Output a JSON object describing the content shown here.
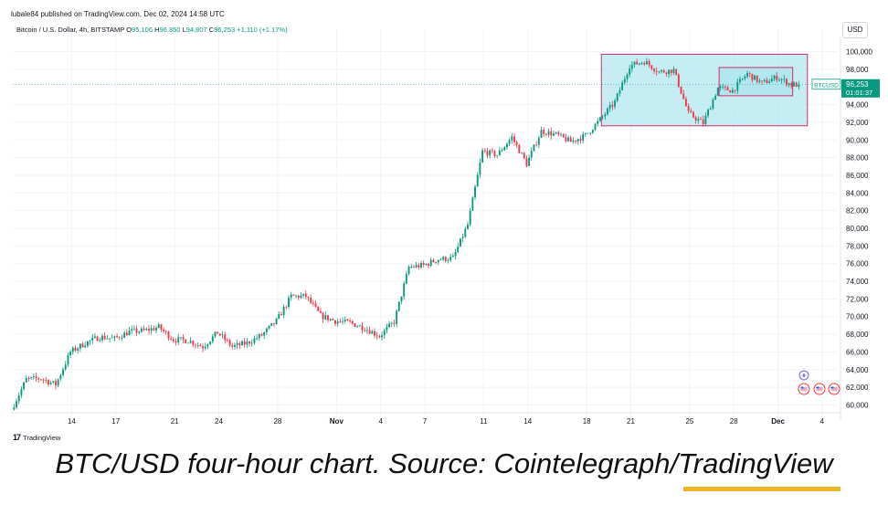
{
  "header": {
    "publisher": "lubale84 published on TradingView.com, Dec 02, 2024 14:58 UTC",
    "symbol_desc": "Bitcoin / U.S. Dollar, 4h, BITSTAMP",
    "open_label": "O",
    "open_value": "95,106",
    "high_label": "H",
    "high_value": "96,850",
    "low_label": "L",
    "low_value": "94,807",
    "close_label": "C",
    "close_value": "96,253",
    "change": "+1,110 (+1.17%)",
    "currency": "USD"
  },
  "price_tag": {
    "symbol": "BTCUSD",
    "price": "96,253",
    "countdown": "01:01:37"
  },
  "footer": {
    "logo_text": "TradingView",
    "caption": "BTC/USD four-hour chart. Source: Cointelegraph/TradingView"
  },
  "colors": {
    "up": "#089981",
    "down": "#f23645",
    "box_fill": "#a8e4ee",
    "box_border": "#d12c6a",
    "caption_underline": "#f0b429"
  },
  "chart_data": {
    "type": "candlestick",
    "timeframe": "4h",
    "y_ticks": [
      60000,
      62000,
      64000,
      66000,
      68000,
      70000,
      72000,
      74000,
      76000,
      78000,
      80000,
      82000,
      84000,
      86000,
      88000,
      90000,
      92000,
      94000,
      96000,
      98000,
      100000
    ],
    "y_tick_labels": [
      "60,000",
      "62,000",
      "64,000",
      "66,000",
      "68,000",
      "70,000",
      "72,000",
      "74,000",
      "76,000",
      "78,000",
      "80,000",
      "82,000",
      "84,000",
      "86,000",
      "88,000",
      "90,000",
      "92,000",
      "94,000",
      "96,000",
      "98,000",
      "100,000"
    ],
    "ylim": [
      58500,
      101500
    ],
    "x_axis": {
      "start": "2024-10-10",
      "end": "2024-12-05",
      "ticks": [
        {
          "date": "2024-10-14",
          "label": "14"
        },
        {
          "date": "2024-10-17",
          "label": "17"
        },
        {
          "date": "2024-10-21",
          "label": "21"
        },
        {
          "date": "2024-10-24",
          "label": "24"
        },
        {
          "date": "2024-10-28",
          "label": "28"
        },
        {
          "date": "2024-11-01",
          "label": "Nov"
        },
        {
          "date": "2024-11-04",
          "label": "4"
        },
        {
          "date": "2024-11-07",
          "label": "7"
        },
        {
          "date": "2024-11-11",
          "label": "11"
        },
        {
          "date": "2024-11-14",
          "label": "14"
        },
        {
          "date": "2024-11-18",
          "label": "18"
        },
        {
          "date": "2024-11-21",
          "label": "21"
        },
        {
          "date": "2024-11-25",
          "label": "25"
        },
        {
          "date": "2024-11-28",
          "label": "28"
        },
        {
          "date": "2024-12-01",
          "label": "Dec"
        },
        {
          "date": "2024-12-04",
          "label": "4"
        }
      ]
    },
    "price_path": [
      [
        "2024-10-10",
        59500
      ],
      [
        "2024-10-11",
        62900
      ],
      [
        "2024-10-12",
        63000
      ],
      [
        "2024-10-13",
        62300
      ],
      [
        "2024-10-14",
        66000
      ],
      [
        "2024-10-15",
        67000
      ],
      [
        "2024-10-16",
        67700
      ],
      [
        "2024-10-17",
        67500
      ],
      [
        "2024-10-18",
        68300
      ],
      [
        "2024-10-19",
        68400
      ],
      [
        "2024-10-20",
        68800
      ],
      [
        "2024-10-21",
        67400
      ],
      [
        "2024-10-22",
        67300
      ],
      [
        "2024-10-23",
        66600
      ],
      [
        "2024-10-24",
        68200
      ],
      [
        "2024-10-25",
        66600
      ],
      [
        "2024-10-26",
        67000
      ],
      [
        "2024-10-27",
        67900
      ],
      [
        "2024-10-28",
        69500
      ],
      [
        "2024-10-29",
        72300
      ],
      [
        "2024-10-30",
        72300
      ],
      [
        "2024-10-31",
        70100
      ],
      [
        "2024-11-01",
        69500
      ],
      [
        "2024-11-02",
        69300
      ],
      [
        "2024-11-03",
        68700
      ],
      [
        "2024-11-04",
        67800
      ],
      [
        "2024-11-05",
        69400
      ],
      [
        "2024-11-06",
        75600
      ],
      [
        "2024-11-07",
        75800
      ],
      [
        "2024-11-08",
        76500
      ],
      [
        "2024-11-09",
        76600
      ],
      [
        "2024-11-10",
        80400
      ],
      [
        "2024-11-11",
        88700
      ],
      [
        "2024-11-12",
        88300
      ],
      [
        "2024-11-13",
        90300
      ],
      [
        "2024-11-14",
        87300
      ],
      [
        "2024-11-15",
        91000
      ],
      [
        "2024-11-16",
        90600
      ],
      [
        "2024-11-17",
        89800
      ],
      [
        "2024-11-18",
        90500
      ],
      [
        "2024-11-19",
        92300
      ],
      [
        "2024-11-20",
        94300
      ],
      [
        "2024-11-21",
        98400
      ],
      [
        "2024-11-22",
        98900
      ],
      [
        "2024-11-23",
        97700
      ],
      [
        "2024-11-24",
        97900
      ],
      [
        "2024-11-25",
        93000
      ],
      [
        "2024-11-26",
        91900
      ],
      [
        "2024-11-27",
        95900
      ],
      [
        "2024-11-28",
        95600
      ],
      [
        "2024-11-29",
        97500
      ],
      [
        "2024-11-30",
        96400
      ],
      [
        "2024-12-01",
        97100
      ],
      [
        "2024-12-02",
        96253
      ]
    ],
    "annotation_boxes": [
      {
        "x_start": "2024-11-19",
        "x_end": "2024-12-03",
        "y_low": 91600,
        "y_high": 99700
      },
      {
        "x_start": "2024-11-27",
        "x_end": "2024-12-02",
        "y_low": 95000,
        "y_high": 98200
      }
    ],
    "last_price": 96253
  }
}
